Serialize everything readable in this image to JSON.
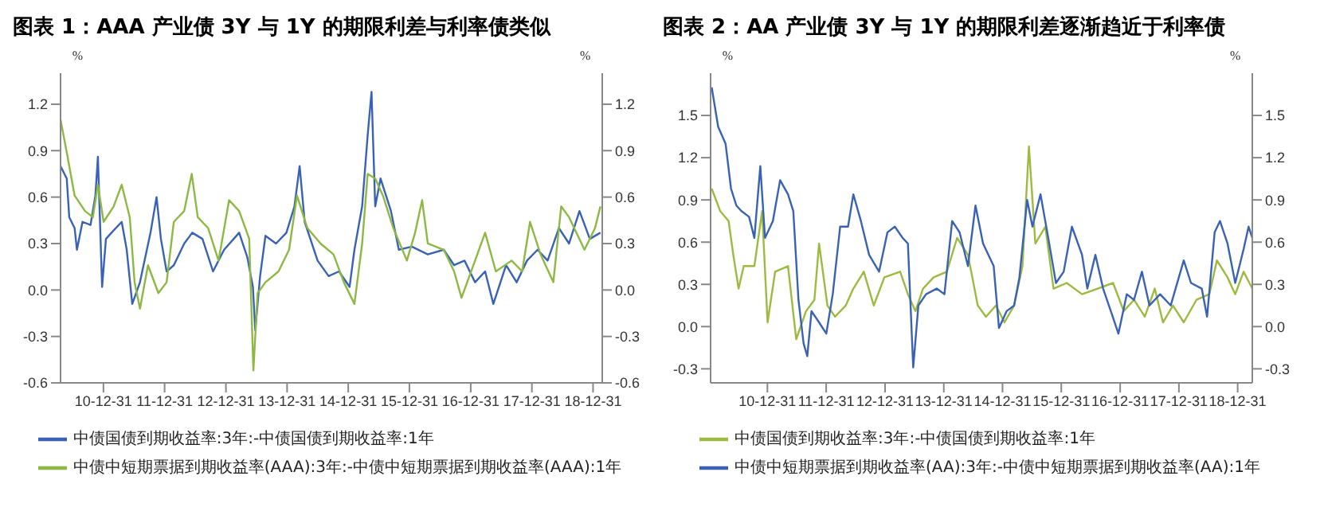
{
  "chart_data": [
    {
      "type": "line",
      "title": "图表 1：AAA 产业债 3Y 与 1Y 的期限利差与利率债类似",
      "ylabel": "%",
      "y2label": "%",
      "xlim": [
        "2010-04-19",
        "2019-02-24"
      ],
      "xticks": [
        {
          "value": "2010-12-31",
          "label": "10-12-31"
        },
        {
          "value": "2011-12-31",
          "label": "11-12-31"
        },
        {
          "value": "2012-12-31",
          "label": "12-12-31"
        },
        {
          "value": "2013-12-31",
          "label": "13-12-31"
        },
        {
          "value": "2014-12-31",
          "label": "14-12-31"
        },
        {
          "value": "2015-12-31",
          "label": "15-12-31"
        },
        {
          "value": "2016-12-31",
          "label": "16-12-31"
        },
        {
          "value": "2017-12-31",
          "label": "17-12-31"
        },
        {
          "value": "2018-12-31",
          "label": "18-12-31"
        }
      ],
      "ylim": [
        -0.6,
        1.4
      ],
      "yticks": [
        -0.6,
        -0.3,
        {
          "value": 0,
          "label": "0.0"
        },
        0.3,
        0.6,
        0.9,
        1.2
      ],
      "y2lim": [
        -0.6,
        1.4
      ],
      "y2ticks": [
        -0.6,
        -0.3,
        {
          "value": 0,
          "label": "0.0"
        },
        0.3,
        0.6,
        0.9,
        1.2
      ],
      "legend": "bottom",
      "marker": "none",
      "line_style": "solid",
      "series": [
        {
          "name": "中债国债到期收益率:3年:-中债国债到期收益率:1年",
          "color": "#3a62b4",
          "x": [
            "2010-04-19",
            "2010-05-26",
            "2010-06-10",
            "2010-07-12",
            "2010-07-26",
            "2010-08-28",
            "2010-10-15",
            "2010-11-13",
            "2010-11-28",
            "2010-12-23",
            "2011-01-15",
            "2011-02-17",
            "2011-04-19",
            "2011-05-19",
            "2011-06-21",
            "2011-08-06",
            "2011-10-08",
            "2011-11-13",
            "2011-12-09",
            "2012-01-12",
            "2012-02-24",
            "2012-04-26",
            "2012-06-13",
            "2012-08-13",
            "2012-10-15",
            "2012-12-20",
            "2013-03-20",
            "2013-05-08",
            "2013-06-10",
            "2013-06-24",
            "2013-07-23",
            "2013-08-24",
            "2013-10-26",
            "2013-12-27",
            "2014-02-13",
            "2014-03-16",
            "2014-04-15",
            "2014-07-01",
            "2014-09-05",
            "2014-11-06",
            "2015-01-08",
            "2015-02-06",
            "2015-03-24",
            "2015-04-26",
            "2015-05-19",
            "2015-06-10",
            "2015-07-12",
            "2015-09-12",
            "2015-10-29",
            "2016-01-15",
            "2016-04-19",
            "2016-07-23",
            "2016-09-23",
            "2016-11-24",
            "2017-01-26",
            "2017-03-27",
            "2017-05-15",
            "2017-07-30",
            "2017-10-01",
            "2017-12-02",
            "2018-02-03",
            "2018-04-04",
            "2018-06-10",
            "2018-08-10",
            "2018-10-11",
            "2018-12-12",
            "2019-02-13"
          ],
          "values": [
            0.8,
            0.72,
            0.47,
            0.4,
            0.26,
            0.44,
            0.42,
            0.61,
            0.86,
            0.02,
            0.33,
            0.37,
            0.44,
            0.26,
            -0.09,
            0.05,
            0.37,
            0.6,
            0.33,
            0.12,
            0.16,
            0.3,
            0.37,
            0.33,
            0.12,
            0.26,
            0.37,
            0.21,
            0.02,
            -0.26,
            0.09,
            0.35,
            0.3,
            0.37,
            0.54,
            0.8,
            0.44,
            0.19,
            0.09,
            0.12,
            0.02,
            0.26,
            0.54,
            1.0,
            1.28,
            0.54,
            0.72,
            0.51,
            0.26,
            0.28,
            0.23,
            0.26,
            0.16,
            0.19,
            0.05,
            0.12,
            -0.09,
            0.16,
            0.05,
            0.19,
            0.26,
            0.19,
            0.4,
            0.3,
            0.51,
            0.33,
            0.37
          ]
        },
        {
          "name": "中债中短期票据到期收益率(AAA):3年:-中债中短期票据到期收益率(AAA):1年",
          "color": "#8db843",
          "x": [
            "2010-04-19",
            "2010-05-26",
            "2010-07-12",
            "2010-09-12",
            "2010-10-29",
            "2010-11-28",
            "2011-01-01",
            "2011-03-02",
            "2011-04-19",
            "2011-06-06",
            "2011-07-05",
            "2011-08-06",
            "2011-09-23",
            "2011-11-24",
            "2012-01-12",
            "2012-02-24",
            "2012-04-26",
            "2012-06-10",
            "2012-07-16",
            "2012-09-16",
            "2012-11-17",
            "2013-01-19",
            "2013-03-20",
            "2013-05-19",
            "2013-06-13",
            "2013-07-08",
            "2013-08-24",
            "2013-11-10",
            "2014-01-12",
            "2014-02-28",
            "2014-05-01",
            "2014-07-19",
            "2014-10-04",
            "2014-12-05",
            "2015-02-06",
            "2015-03-24",
            "2015-04-26",
            "2015-06-10",
            "2015-07-26",
            "2015-09-26",
            "2015-12-16",
            "2016-02-03",
            "2016-03-16",
            "2016-04-19",
            "2016-07-23",
            "2016-09-23",
            "2016-11-06",
            "2017-01-26",
            "2017-03-27",
            "2017-05-30",
            "2017-09-01",
            "2017-11-03",
            "2017-12-20",
            "2018-02-21",
            "2018-05-08",
            "2018-06-24",
            "2018-08-10",
            "2018-11-10",
            "2019-01-12",
            "2019-02-13"
          ],
          "values": [
            1.1,
            0.89,
            0.61,
            0.51,
            0.47,
            0.68,
            0.44,
            0.54,
            0.68,
            0.47,
            0.05,
            -0.12,
            0.16,
            -0.02,
            0.05,
            0.44,
            0.51,
            0.75,
            0.47,
            0.4,
            0.19,
            0.58,
            0.51,
            0.33,
            -0.52,
            -0.02,
            0.05,
            0.12,
            0.26,
            0.61,
            0.4,
            0.3,
            0.23,
            0.05,
            -0.09,
            0.3,
            0.75,
            0.72,
            0.61,
            0.4,
            0.19,
            0.37,
            0.58,
            0.3,
            0.26,
            0.12,
            -0.05,
            0.19,
            0.37,
            0.12,
            0.19,
            0.12,
            0.44,
            0.23,
            0.05,
            0.54,
            0.47,
            0.26,
            0.4,
            0.54
          ]
        }
      ]
    },
    {
      "type": "line",
      "title": "图表 2：AA 产业债 3Y 与 1Y 的期限利差逐渐趋近于利率债",
      "ylabel": "%",
      "y2label": "%",
      "xlim": [
        "2010-01-12",
        "2019-04-01"
      ],
      "xticks": [
        {
          "value": "2010-12-31",
          "label": "10-12-31"
        },
        {
          "value": "2011-12-31",
          "label": "11-12-31"
        },
        {
          "value": "2012-12-31",
          "label": "12-12-31"
        },
        {
          "value": "2013-12-31",
          "label": "13-12-31"
        },
        {
          "value": "2014-12-31",
          "label": "14-12-31"
        },
        {
          "value": "2015-12-31",
          "label": "15-12-31"
        },
        {
          "value": "2016-12-31",
          "label": "16-12-31"
        },
        {
          "value": "2017-12-31",
          "label": "17-12-31"
        },
        {
          "value": "2018-12-31",
          "label": "18-12-31"
        }
      ],
      "ylim": [
        -0.4,
        1.8
      ],
      "yticks": [
        -0.3,
        {
          "value": 0,
          "label": "0.0"
        },
        0.3,
        0.6,
        0.9,
        1.2,
        1.5
      ],
      "y2lim": [
        -0.4,
        1.8
      ],
      "y2ticks": [
        -0.3,
        {
          "value": 0,
          "label": "0.0"
        },
        0.3,
        0.6,
        0.9,
        1.2,
        1.5
      ],
      "legend": "bottom",
      "marker": "none",
      "line_style": "solid",
      "series": [
        {
          "name": "中债国债到期收益率:3年:-中债国债到期收益率:1年",
          "color": "#9cba3f",
          "x": [
            "2010-01-19",
            "2010-03-13",
            "2010-05-04",
            "2010-06-02",
            "2010-07-05",
            "2010-08-06",
            "2010-10-11",
            "2010-11-28",
            "2011-01-01",
            "2011-02-17",
            "2011-05-08",
            "2011-06-28",
            "2011-08-28",
            "2011-10-19",
            "2011-11-17",
            "2012-01-08",
            "2012-02-24",
            "2012-05-01",
            "2012-06-17",
            "2012-08-21",
            "2012-10-22",
            "2012-12-27",
            "2013-04-04",
            "2013-05-22",
            "2013-07-08",
            "2013-08-24",
            "2013-10-29",
            "2014-01-19",
            "2014-03-24",
            "2014-05-30",
            "2014-07-30",
            "2014-09-19",
            "2014-11-20",
            "2015-01-12",
            "2015-03-13",
            "2015-05-04",
            "2015-06-13",
            "2015-07-23",
            "2015-09-23",
            "2015-11-13",
            "2016-02-03",
            "2016-05-08",
            "2016-08-13",
            "2016-11-17",
            "2017-01-22",
            "2017-03-27",
            "2017-06-02",
            "2017-08-03",
            "2017-09-23",
            "2017-11-24",
            "2018-01-30",
            "2018-04-19",
            "2018-07-08",
            "2018-08-24",
            "2018-10-29",
            "2018-12-16",
            "2019-02-06",
            "2019-04-01"
          ],
          "values": [
            0.98,
            0.82,
            0.75,
            0.51,
            0.27,
            0.43,
            0.43,
            0.82,
            0.03,
            0.39,
            0.43,
            -0.09,
            0.11,
            0.19,
            0.59,
            0.15,
            0.07,
            0.15,
            0.27,
            0.39,
            0.15,
            0.35,
            0.39,
            0.23,
            0.11,
            0.27,
            0.35,
            0.39,
            0.63,
            0.51,
            0.15,
            0.07,
            0.15,
            0.03,
            0.15,
            0.43,
            1.28,
            0.59,
            0.71,
            0.27,
            0.31,
            0.23,
            0.27,
            0.31,
            0.11,
            0.19,
            0.07,
            0.27,
            0.03,
            0.15,
            0.03,
            0.19,
            0.23,
            0.47,
            0.35,
            0.23,
            0.39,
            0.27
          ]
        },
        {
          "name": "中债中短期票据到期收益率(AA):3年:-中债中短期票据到期收益率(AA):1年",
          "color": "#3a62b4",
          "x": [
            "2010-01-19",
            "2010-02-28",
            "2010-04-15",
            "2010-05-19",
            "2010-06-21",
            "2010-07-23",
            "2010-09-08",
            "2010-10-11",
            "2010-11-17",
            "2010-12-16",
            "2011-02-03",
            "2011-03-20",
            "2011-05-08",
            "2011-06-10",
            "2011-07-12",
            "2011-08-13",
            "2011-09-05",
            "2011-10-01",
            "2011-11-17",
            "2012-01-01",
            "2012-02-10",
            "2012-03-27",
            "2012-05-15",
            "2012-06-17",
            "2012-08-03",
            "2012-09-23",
            "2012-11-24",
            "2013-01-15",
            "2013-03-02",
            "2013-04-19",
            "2013-05-22",
            "2013-06-24",
            "2013-07-26",
            "2013-09-12",
            "2013-11-17",
            "2014-01-04",
            "2014-02-21",
            "2014-04-08",
            "2014-05-30",
            "2014-07-16",
            "2014-09-01",
            "2014-11-06",
            "2014-12-09",
            "2015-01-26",
            "2015-03-13",
            "2015-04-15",
            "2015-06-02",
            "2015-07-05",
            "2015-08-24",
            "2015-10-11",
            "2015-11-28",
            "2016-01-15",
            "2016-03-06",
            "2016-05-08",
            "2016-06-10",
            "2016-07-30",
            "2016-09-16",
            "2016-11-03",
            "2016-12-20",
            "2017-02-10",
            "2017-03-27",
            "2017-05-15",
            "2017-07-01",
            "2017-09-05",
            "2017-11-10",
            "2018-01-30",
            "2018-03-16",
            "2018-05-22",
            "2018-06-24",
            "2018-08-10",
            "2018-09-12",
            "2018-10-29",
            "2018-12-16",
            "2019-02-06",
            "2019-03-09",
            "2019-04-01"
          ],
          "values": [
            1.7,
            1.42,
            1.3,
            0.98,
            0.86,
            0.82,
            0.78,
            0.63,
            1.14,
            0.63,
            0.75,
            1.04,
            0.94,
            0.82,
            0.19,
            -0.12,
            -0.21,
            0.11,
            0.03,
            -0.05,
            0.23,
            0.71,
            0.71,
            0.94,
            0.75,
            0.51,
            0.39,
            0.67,
            0.71,
            0.63,
            0.59,
            -0.29,
            0.15,
            0.23,
            0.27,
            0.23,
            0.75,
            0.67,
            0.43,
            0.86,
            0.59,
            0.43,
            -0.01,
            0.11,
            0.15,
            0.35,
            0.9,
            0.71,
            0.94,
            0.63,
            0.31,
            0.39,
            0.71,
            0.51,
            0.27,
            0.51,
            0.27,
            0.11,
            -0.05,
            0.23,
            0.19,
            0.39,
            0.15,
            0.23,
            0.15,
            0.47,
            0.31,
            0.27,
            0.07,
            0.67,
            0.75,
            0.59,
            0.31,
            0.55,
            0.71,
            0.63
          ]
        }
      ]
    }
  ]
}
